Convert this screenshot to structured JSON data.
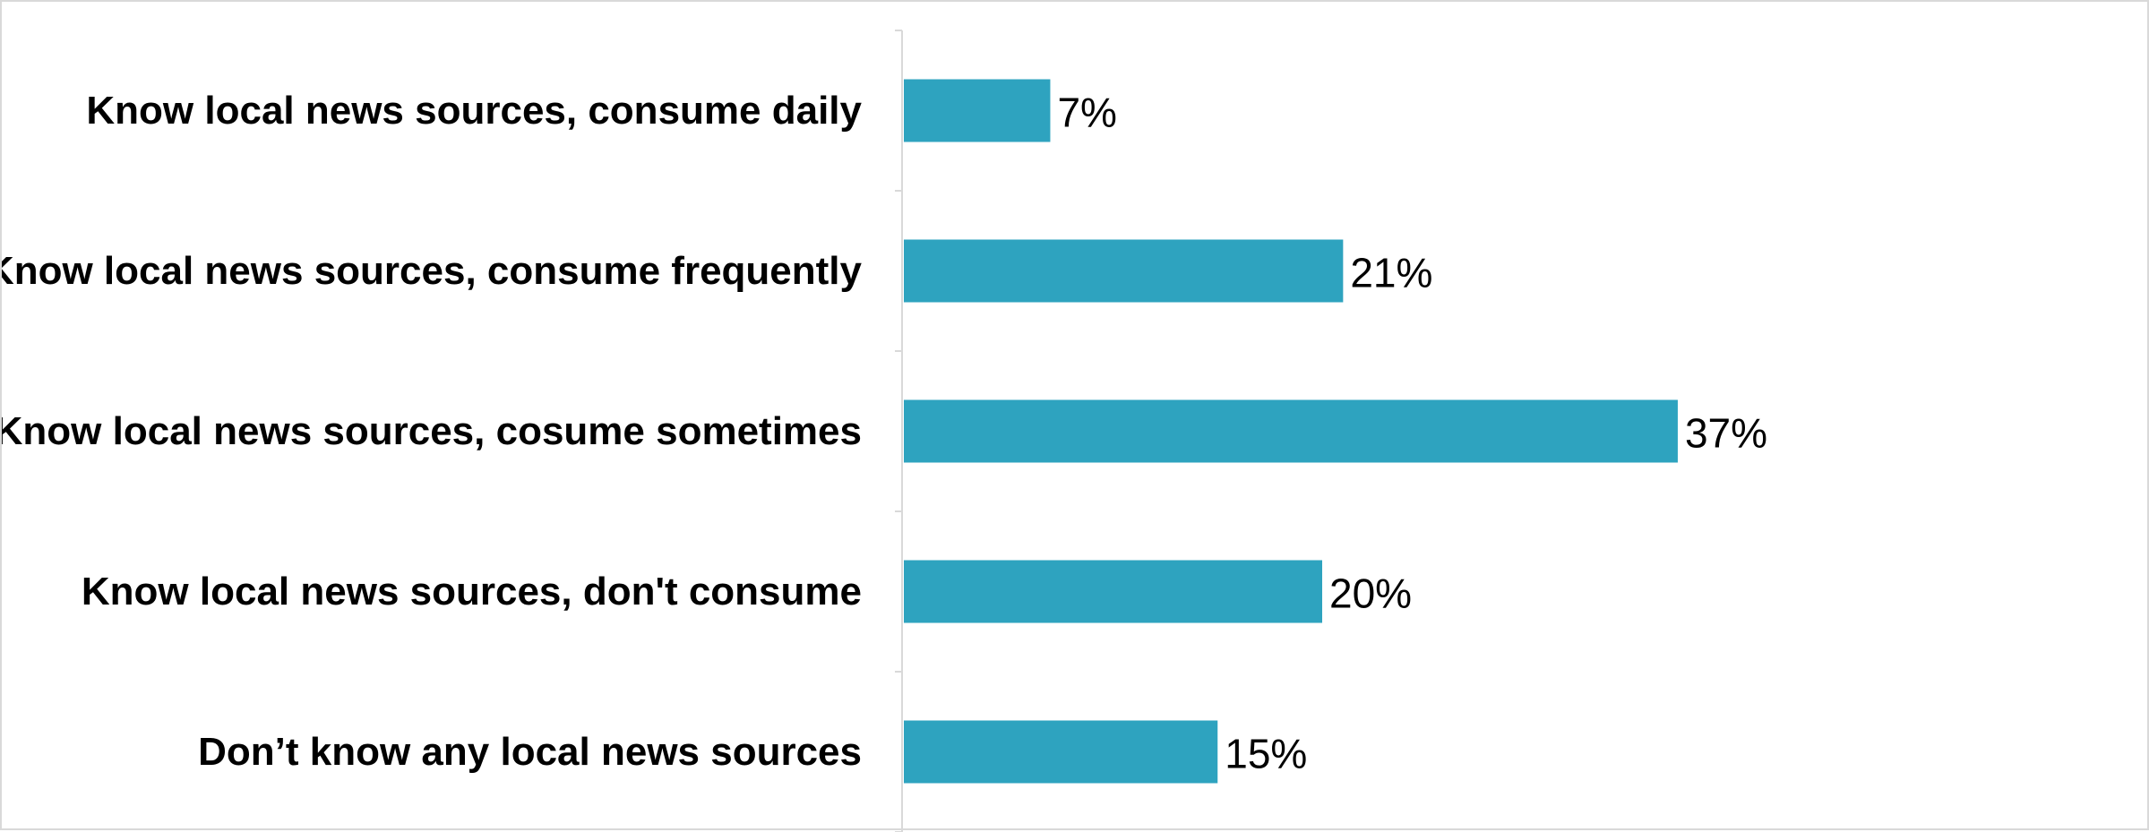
{
  "chart_data": {
    "type": "bar",
    "orientation": "horizontal",
    "categories": [
      "Know local news sources, consume daily",
      "Know local news sources, consume frequently",
      "Know local news sources, cosume sometimes",
      "Know local news sources, don't consume",
      "Don’t know any local news sources"
    ],
    "values": [
      7,
      21,
      37,
      20,
      15
    ],
    "value_labels": [
      "7%",
      "21%",
      "37%",
      "20%",
      "15%"
    ],
    "unit": "%",
    "title": "",
    "xlabel": "",
    "ylabel": "",
    "xlim": [
      0,
      60
    ],
    "grid": false,
    "legend": "none",
    "colors": {
      "bar": "#2ea3bf",
      "axis": "#d9d9d9",
      "frame": "#d9d9d9",
      "text": "#000000"
    }
  }
}
